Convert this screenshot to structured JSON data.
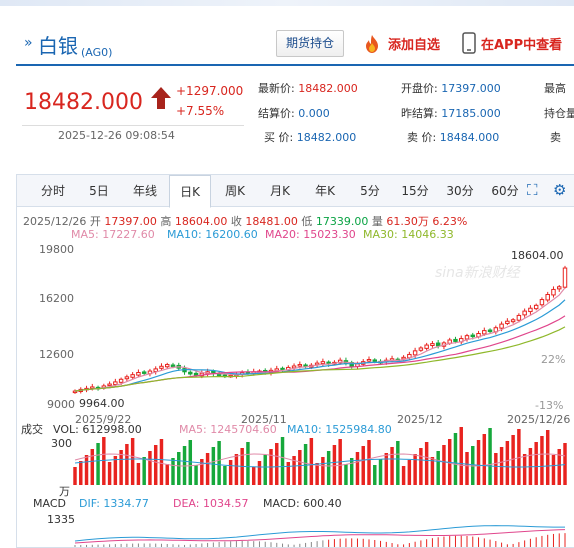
{
  "header": {
    "mark": "»",
    "name": "白银",
    "code": "(AG0)",
    "futures_position_button": "期货持仓",
    "add_watchlist": "添加自选",
    "view_in_app": "在APP中查看"
  },
  "quote": {
    "price": "18482.000",
    "change": "+1297.000",
    "change_pct": "+7.55%",
    "time": "2025-12-26 09:08:54",
    "fields": [
      {
        "label": "最新价:",
        "value": "18482.000"
      },
      {
        "label": "开盘价:",
        "value": "17397.000"
      },
      {
        "label": "最高",
        "value": ""
      },
      {
        "label": "结算价:",
        "value": "0.000"
      },
      {
        "label": "昨结算:",
        "value": "17185.000"
      },
      {
        "label": "持仓量",
        "value": ""
      },
      {
        "label": "买  价:",
        "value": "18482.000"
      },
      {
        "label": "卖  价:",
        "value": "18484.000"
      },
      {
        "label": "卖",
        "value": ""
      }
    ]
  },
  "tabs": [
    "分时",
    "5日",
    "年线",
    "日K",
    "周K",
    "月K",
    "年K",
    "5分",
    "15分",
    "30分",
    "60分"
  ],
  "active_tab": "日K",
  "ohlc": {
    "date": "2025/12/26",
    "open_label": "开",
    "open": "17397.00",
    "high_label": "高",
    "high": "18604.00",
    "close_label": "收",
    "close": "18481.00",
    "low_label": "低",
    "low": "17339.00",
    "vol_label": "量",
    "vol": "61.30万",
    "pct": "6.23%"
  },
  "ma": [
    {
      "label": "MA5: 17227.60",
      "color": "#e08aa8"
    },
    {
      "label": "MA10: 16200.60",
      "color": "#2b9bd6"
    },
    {
      "label": "MA20: 15023.30",
      "color": "#e0468c"
    },
    {
      "label": "MA30: 14046.33",
      "color": "#8fb82b"
    }
  ],
  "colors": {
    "up": "#e8231f",
    "down": "#16a83b",
    "accent": "#1a66b2"
  },
  "chart_data": {
    "type": "candlestick",
    "price_axis": {
      "ticks": [
        9000,
        12600,
        16200,
        19800
      ],
      "ylim": [
        9000,
        19800
      ]
    },
    "pct_axis": {
      "ticks": [
        "22%",
        "-13%"
      ]
    },
    "x_labels": [
      "2025/9/22",
      "2025/11",
      "2025/12",
      "2025/12/26"
    ],
    "high_annotation": "18604.00",
    "low_annotation": "9964.00",
    "closes": [
      9964,
      10080,
      10150,
      10250,
      10200,
      10320,
      10450,
      10600,
      10780,
      10950,
      11100,
      11250,
      11200,
      11350,
      11500,
      11680,
      11800,
      11700,
      11550,
      11300,
      11150,
      11050,
      11200,
      11300,
      11180,
      11100,
      11000,
      11050,
      11150,
      11250,
      11200,
      11300,
      11350,
      11280,
      11400,
      11500,
      11450,
      11600,
      11700,
      11800,
      11650,
      11750,
      11900,
      12000,
      11850,
      11950,
      12100,
      11900,
      11700,
      11850,
      12000,
      12150,
      12050,
      11950,
      12100,
      12200,
      12150,
      12300,
      12500,
      12750,
      12950,
      13150,
      13250,
      13100,
      13300,
      13500,
      13400,
      13600,
      13800,
      13750,
      13950,
      14150,
      14100,
      14350,
      14600,
      14800,
      14900,
      15200,
      15500,
      15700,
      15900,
      16300,
      16650,
      17000,
      17185,
      18481
    ],
    "volume_axis": {
      "top_label": "300",
      "unit_label": "万"
    },
    "volume": {
      "label": "成交",
      "vol": "VOL: 612998.00",
      "ma5": "MA5: 1245704.60",
      "ma10": "MA10: 1525984.80"
    },
    "macd": {
      "label": "MACD",
      "dif": "DIF: 1334.77",
      "dea": "DEA: 1034.57",
      "macd": "MACD: 600.40",
      "top_label": "1335"
    }
  }
}
